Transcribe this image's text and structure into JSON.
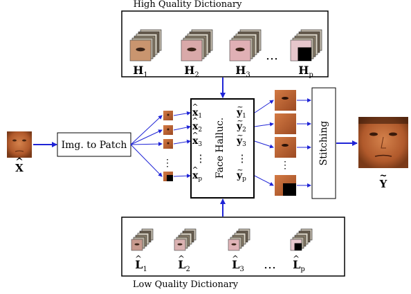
{
  "high_dictionary": {
    "title": "High Quality Dictionary",
    "labels": [
      "H",
      "H",
      "H",
      "H"
    ],
    "subs": [
      "1",
      "2",
      "3",
      "p"
    ],
    "ellipsis": "…"
  },
  "low_dictionary": {
    "title": "Low Quality Dictionary",
    "labels": [
      "L",
      "L",
      "L",
      "L"
    ],
    "subs": [
      "1",
      "2",
      "3",
      "p"
    ],
    "ellipsis": "…"
  },
  "input": {
    "label": "X",
    "accent": "̂"
  },
  "output": {
    "label": "Y",
    "accent": "̃"
  },
  "img_to_patch": {
    "label": "Img. to Patch"
  },
  "face_halluc": {
    "label": "Face Halluc.",
    "x_label": "x",
    "y_label": "y",
    "subs": [
      "1",
      "2",
      "3",
      "p"
    ],
    "vdots": "⋮"
  },
  "stitching": {
    "label": "Stitching"
  },
  "colors": {
    "arrow": "#1f24d6",
    "skin": "#c8703c",
    "skin_dark": "#8a4421",
    "pink": "#e2b7b9"
  }
}
